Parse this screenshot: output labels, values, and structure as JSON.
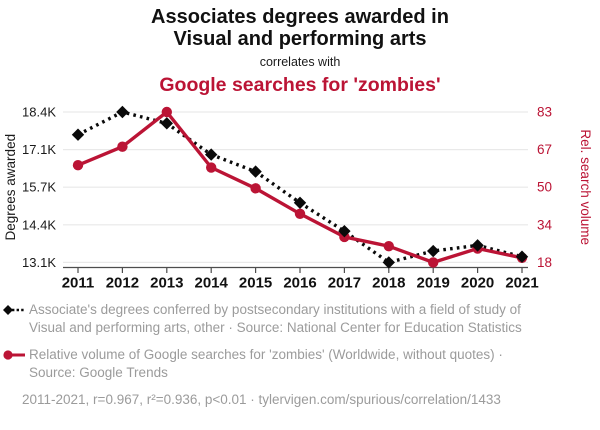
{
  "title": {
    "line1": "Associates degrees awarded in",
    "line2": "Visual and performing arts",
    "connector": "correlates with",
    "secondary": "Google searches for 'zombies'"
  },
  "colors": {
    "accent_red": "#bb1435",
    "series_black": "#0a0a0a",
    "grid": "#e9e9e9",
    "axis": "#4d4d4d",
    "tick_text": "#1a1a1a",
    "footer_text": "#9b9b9b"
  },
  "chart_data": {
    "type": "line",
    "x": [
      2011,
      2012,
      2013,
      2014,
      2015,
      2016,
      2017,
      2018,
      2019,
      2020,
      2021
    ],
    "x_ticks": [
      "2011",
      "2012",
      "2013",
      "2014",
      "2015",
      "2016",
      "2017",
      "2018",
      "2019",
      "2020",
      "2021"
    ],
    "left_axis": {
      "label": "Degrees awarded",
      "ticks": [
        "18.4K",
        "17.1K",
        "15.7K",
        "14.4K",
        "13.1K"
      ],
      "min": 13.1,
      "max": 18.4
    },
    "right_axis": {
      "label": "Rel. search volume",
      "ticks": [
        "83",
        "67",
        "50",
        "34",
        "18"
      ],
      "min": 18,
      "max": 83
    },
    "series": [
      {
        "name": "Associate's degrees in Visual and performing arts, other",
        "axis": "left",
        "marker": "diamond",
        "line_style": "dashed",
        "color_key": "series_black",
        "values": [
          17.6,
          18.4,
          18.0,
          16.9,
          16.3,
          15.2,
          14.2,
          13.1,
          13.5,
          13.7,
          13.3
        ]
      },
      {
        "name": "Google searches for 'zombies'",
        "axis": "right",
        "marker": "circle",
        "line_style": "solid",
        "color_key": "accent_red",
        "values": [
          60,
          68,
          83,
          59,
          50,
          39,
          29,
          25,
          18,
          24,
          20
        ]
      }
    ],
    "grid": "horizontal-only",
    "legend_position": "below"
  },
  "legend": [
    {
      "text": "Associate's degrees conferred by postsecondary institutions with a field of study of Visual and performing arts, other · Source: National Center for Education Statistics"
    },
    {
      "text": "Relative volume of Google searches for 'zombies' (Worldwide, without quotes) · Source: Google Trends"
    }
  ],
  "footer": "2011-2021, r=0.967, r²=0.936, p<0.01 · tylervigen.com/spurious/correlation/1433"
}
